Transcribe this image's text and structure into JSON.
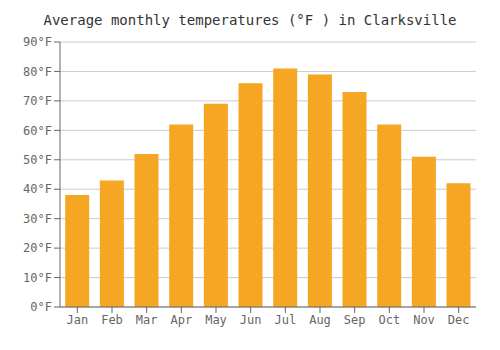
{
  "chart_data": {
    "type": "bar",
    "title": "Average monthly temperatures (°F ) in Clarksville",
    "categories": [
      "Jan",
      "Feb",
      "Mar",
      "Apr",
      "May",
      "Jun",
      "Jul",
      "Aug",
      "Sep",
      "Oct",
      "Nov",
      "Dec"
    ],
    "values": [
      38,
      43,
      52,
      62,
      69,
      76,
      81,
      79,
      73,
      62,
      51,
      42
    ],
    "color": "#F5A623",
    "ylim": [
      0,
      90
    ],
    "yticks": [
      {
        "value": 0,
        "label": "0°F"
      },
      {
        "value": 10,
        "label": "10°F"
      },
      {
        "value": 20,
        "label": "20°F"
      },
      {
        "value": 30,
        "label": "30°F"
      },
      {
        "value": 40,
        "label": "40°F"
      },
      {
        "value": 50,
        "label": "50°F"
      },
      {
        "value": 60,
        "label": "60°F"
      },
      {
        "value": 70,
        "label": "70°F"
      },
      {
        "value": 80,
        "label": "80°F"
      },
      {
        "value": 90,
        "label": "90°F"
      }
    ],
    "grid": true
  }
}
